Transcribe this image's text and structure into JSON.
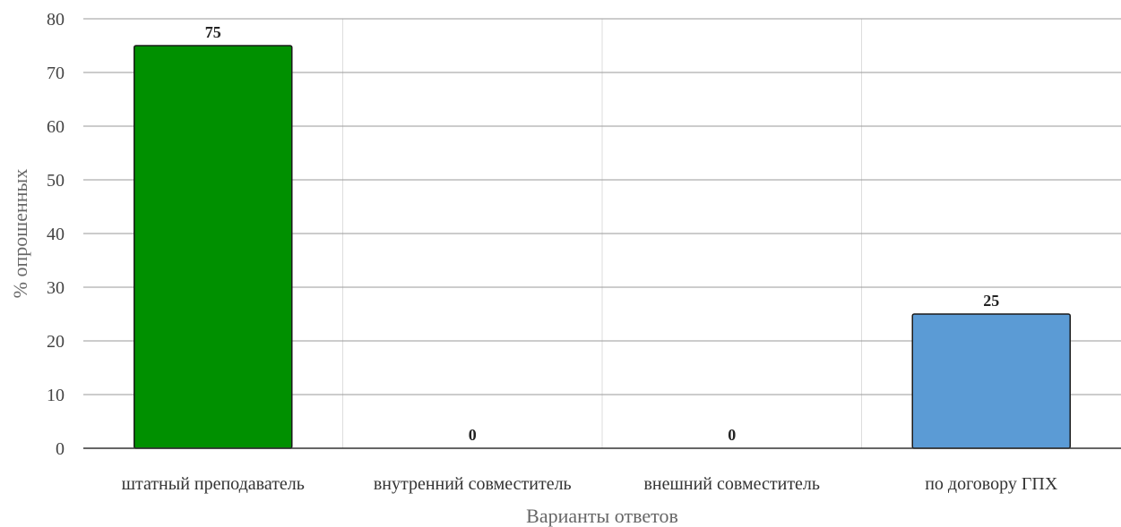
{
  "chart_data": {
    "type": "bar",
    "categories": [
      "штатный преподаватель",
      "внутренний совместитель",
      "внешний совместитель",
      "по договору ГПХ"
    ],
    "values": [
      75,
      0,
      0,
      25
    ],
    "data_labels": [
      "75",
      "0",
      "0",
      "25"
    ],
    "bar_colors": [
      "#009000",
      "#5b9bd5",
      "#5b9bd5",
      "#5b9bd5"
    ],
    "bar_edge_color": "#1a1a1a",
    "xlabel": "Варианты ответов",
    "ylabel": "% опрошенных",
    "ylim": [
      0,
      80
    ],
    "yticks": [
      0,
      10,
      20,
      30,
      40,
      50,
      60,
      70,
      80
    ],
    "grid": {
      "horizontal": true,
      "vertical": true
    }
  }
}
